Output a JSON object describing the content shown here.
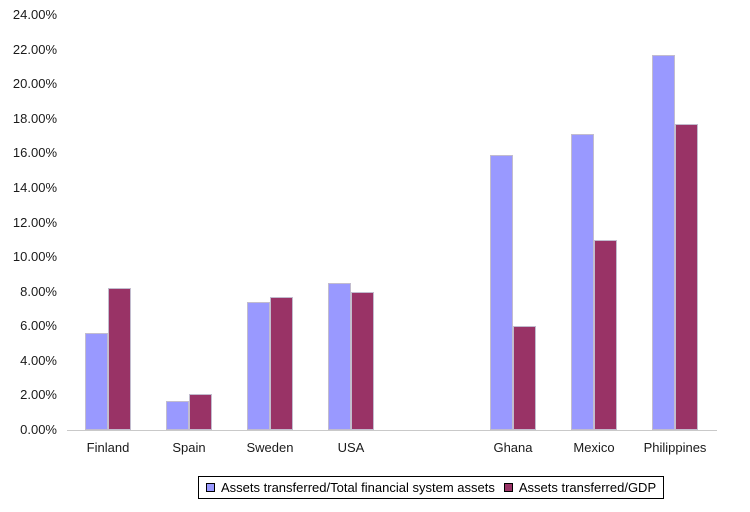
{
  "chart_data": {
    "type": "bar",
    "title": "",
    "xlabel": "",
    "ylabel": "",
    "categories": [
      "Finland",
      "Spain",
      "Sweden",
      "USA",
      "",
      "Ghana",
      "Mexico",
      "Philippines"
    ],
    "series": [
      {
        "name": "Assets transferred/Total financial system assets",
        "color": "#9999FF",
        "values": [
          5.6,
          1.7,
          7.4,
          8.5,
          null,
          15.9,
          17.1,
          21.7
        ]
      },
      {
        "name": "Assets transferred/GDP",
        "color": "#993366",
        "values": [
          8.2,
          2.1,
          7.7,
          8.0,
          null,
          6.0,
          11.0,
          17.7
        ]
      }
    ],
    "ylim": [
      0,
      24
    ],
    "ytick_step": 2,
    "yticks": [
      "24.00%",
      "22.00%",
      "20.00%",
      "18.00%",
      "16.00%",
      "14.00%",
      "12.00%",
      "10.00%",
      "8.00%",
      "6.00%",
      "4.00%",
      "2.00%",
      "0.00%"
    ],
    "grid": false,
    "legend_position": "bottom"
  },
  "legend": {
    "items": [
      {
        "label": "Assets transferred/Total financial system assets",
        "color": "#9999FF"
      },
      {
        "label": "Assets transferred/GDP",
        "color": "#993366"
      }
    ]
  },
  "colors": {
    "series1": "#9999FF",
    "series2": "#993366",
    "bar_border": "#c2bcce",
    "axis_line": "#c9c9c9",
    "text": "#1a1a1a",
    "background": "#ffffff"
  }
}
